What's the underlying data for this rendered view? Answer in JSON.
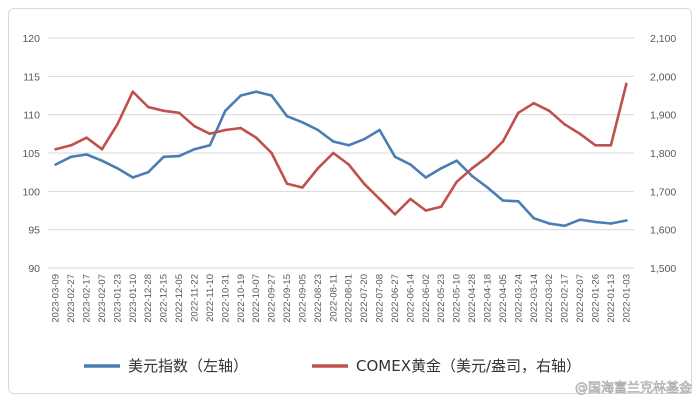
{
  "chart_data": {
    "type": "line",
    "x_labels": [
      "2023-03-09",
      "2023-02-27",
      "2023-02-17",
      "2023-02-07",
      "2023-01-23",
      "2023-01-10",
      "2022-12-28",
      "2022-12-15",
      "2022-12-05",
      "2022-11-22",
      "2022-11-10",
      "2022-10-31",
      "2022-10-19",
      "2022-10-07",
      "2022-09-27",
      "2022-09-15",
      "2022-09-05",
      "2022-08-23",
      "2022-08-11",
      "2022-08-01",
      "2022-07-20",
      "2022-07-08",
      "2022-06-27",
      "2022-06-14",
      "2022-06-02",
      "2022-05-23",
      "2022-05-10",
      "2022-04-28",
      "2022-04-18",
      "2022-04-05",
      "2022-03-24",
      "2022-03-14",
      "2022-03-02",
      "2022-02-17",
      "2022-02-07",
      "2022-01-26",
      "2022-01-13",
      "2022-01-03"
    ],
    "y_left": {
      "ticks": [
        "90",
        "95",
        "100",
        "105",
        "110",
        "115",
        "120"
      ],
      "min": 90,
      "max": 120
    },
    "y_right": {
      "ticks": [
        "1,500",
        "1,600",
        "1,700",
        "1,800",
        "1,900",
        "2,000",
        "2,100"
      ],
      "min": 1500,
      "max": 2100
    },
    "grid": "horizontal",
    "legend_position": "bottom",
    "series": [
      {
        "name": "美元指数（左轴）",
        "axis": "left",
        "color": "#4a7eb3",
        "x": [
          0,
          1,
          2,
          3,
          4,
          5,
          6,
          7,
          8,
          9,
          10,
          11,
          12,
          13,
          14,
          15,
          16,
          17,
          18,
          19,
          20,
          21,
          22,
          23,
          24,
          25,
          26,
          27,
          28,
          29,
          30,
          31,
          32,
          33,
          34,
          35,
          36,
          37
        ],
        "values": [
          103.5,
          104.5,
          104.8,
          104.0,
          103.0,
          101.8,
          102.5,
          104.5,
          104.6,
          105.5,
          106.0,
          110.5,
          112.5,
          113.0,
          112.5,
          109.8,
          109.0,
          108.0,
          106.5,
          106.0,
          106.8,
          108.0,
          104.5,
          103.5,
          101.8,
          103.0,
          104.0,
          102.0,
          100.5,
          98.8,
          98.7,
          96.5,
          95.8,
          95.5,
          96.3,
          96.0,
          95.8,
          96.2
        ]
      },
      {
        "name": "COMEX黄金（美元/盎司，右轴）",
        "axis": "right",
        "color": "#c0504d",
        "x": [
          0,
          1,
          2,
          3,
          4,
          5,
          6,
          7,
          8,
          9,
          10,
          11,
          12,
          13,
          14,
          15,
          16,
          17,
          18,
          19,
          20,
          21,
          22,
          23,
          24,
          25,
          26,
          27,
          28,
          29,
          30,
          31,
          32,
          33,
          34,
          35,
          36,
          37
        ],
        "values": [
          1810,
          1820,
          1840,
          1810,
          1875,
          1960,
          1920,
          1910,
          1905,
          1870,
          1850,
          1860,
          1865,
          1840,
          1800,
          1720,
          1710,
          1760,
          1800,
          1770,
          1720,
          1680,
          1640,
          1680,
          1650,
          1660,
          1725,
          1760,
          1790,
          1830,
          1905,
          1930,
          1910,
          1875,
          1850,
          1820,
          1820,
          1980
        ]
      }
    ]
  },
  "watermark": "@国海富兰克林基金"
}
